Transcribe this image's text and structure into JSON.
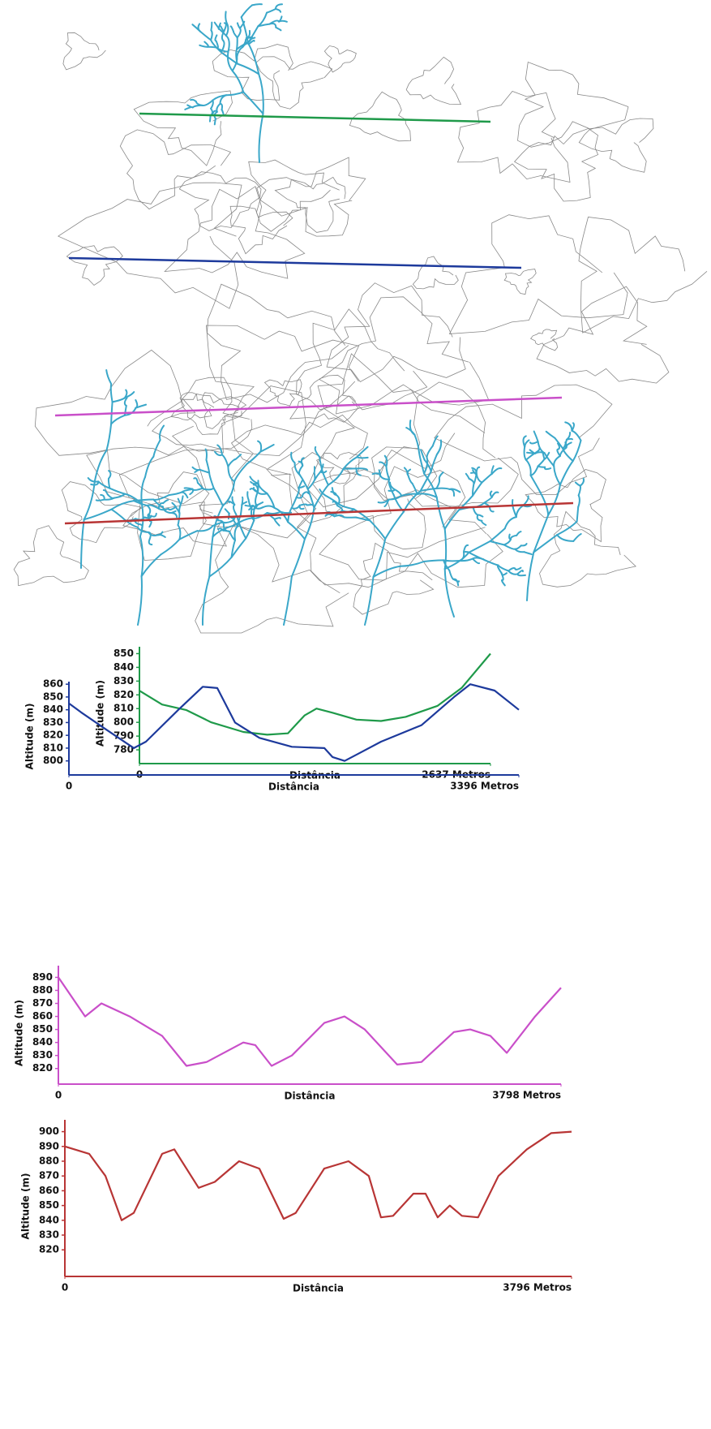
{
  "chart_data": [
    {
      "type": "line",
      "color": "#1f9a4a",
      "y_label": "Altitude (m)",
      "x_label": "Distância",
      "x": [
        0,
        170,
        350,
        540,
        780,
        960,
        1115,
        1240,
        1330,
        1450,
        1630,
        1815,
        2000,
        2240,
        2420,
        2637
      ],
      "values": [
        823,
        813,
        809,
        800,
        793,
        791,
        792,
        805,
        810,
        807,
        802,
        801,
        804,
        812,
        825,
        850
      ],
      "xlim": [
        0,
        2637
      ],
      "xticks": [
        0,
        {
          "value": 2637,
          "label": "2637 Metros"
        }
      ],
      "ylim": [
        770,
        855
      ],
      "yticks": [
        780,
        790,
        800,
        810,
        820,
        830,
        840,
        850
      ]
    },
    {
      "type": "line",
      "color": "#1d3a9c",
      "y_label": "Altitude (m)",
      "x_label": "Distância",
      "x": [
        0,
        92,
        275,
        490,
        581,
        826,
        1010,
        1120,
        1254,
        1438,
        1683,
        1928,
        1989,
        2081,
        2173,
        2356,
        2662,
        2907,
        3029,
        3213,
        3396
      ],
      "values": [
        845,
        838,
        825,
        810,
        815,
        840,
        858,
        857,
        830,
        818,
        811,
        810,
        803,
        800,
        805,
        815,
        828,
        850,
        860,
        855,
        840
      ],
      "xlim": [
        0,
        3396
      ],
      "xticks": [
        0,
        {
          "value": 3396,
          "label": "3396 Metros"
        }
      ],
      "ylim": [
        789,
        862
      ],
      "yticks": [
        800,
        810,
        820,
        830,
        840,
        850,
        860
      ]
    },
    {
      "type": "line",
      "color": "#c94fc9",
      "y_label": "Altitude (m)",
      "x_label": "Distância",
      "x": [
        0,
        202,
        325,
        539,
        784,
        968,
        1121,
        1397,
        1488,
        1611,
        1764,
        2009,
        2162,
        2315,
        2560,
        2744,
        2989,
        3112,
        3265,
        3388,
        3602,
        3798
      ],
      "values": [
        890,
        860,
        870,
        860,
        845,
        822,
        825,
        840,
        838,
        822,
        830,
        855,
        860,
        850,
        823,
        825,
        848,
        850,
        845,
        832,
        860,
        882
      ],
      "xlim": [
        0,
        3798
      ],
      "xticks": [
        0,
        {
          "value": 3798,
          "label": "3798 Metros"
        }
      ],
      "ylim": [
        808,
        899
      ],
      "yticks": [
        820,
        830,
        840,
        850,
        860,
        870,
        880,
        890
      ]
    },
    {
      "type": "line",
      "color": "#b83535",
      "y_label": "Altitude (m)",
      "x_label": "Distância",
      "x": [
        0,
        182,
        304,
        425,
        516,
        729,
        820,
        1002,
        1123,
        1305,
        1457,
        1639,
        1730,
        1943,
        2125,
        2277,
        2368,
        2459,
        2611,
        2702,
        2793,
        2884,
        2975,
        3096,
        3248,
        3461,
        3643,
        3796
      ],
      "values": [
        890,
        885,
        870,
        840,
        845,
        885,
        888,
        862,
        866,
        880,
        875,
        841,
        845,
        875,
        880,
        870,
        842,
        843,
        858,
        858,
        842,
        850,
        843,
        842,
        870,
        888,
        899,
        900
      ],
      "xlim": [
        0,
        3796
      ],
      "xticks": [
        0,
        {
          "value": 3796,
          "label": "3796 Metros"
        }
      ],
      "ylim": [
        802,
        908
      ],
      "yticks": [
        820,
        830,
        840,
        850,
        860,
        870,
        880,
        890,
        900
      ]
    }
  ]
}
